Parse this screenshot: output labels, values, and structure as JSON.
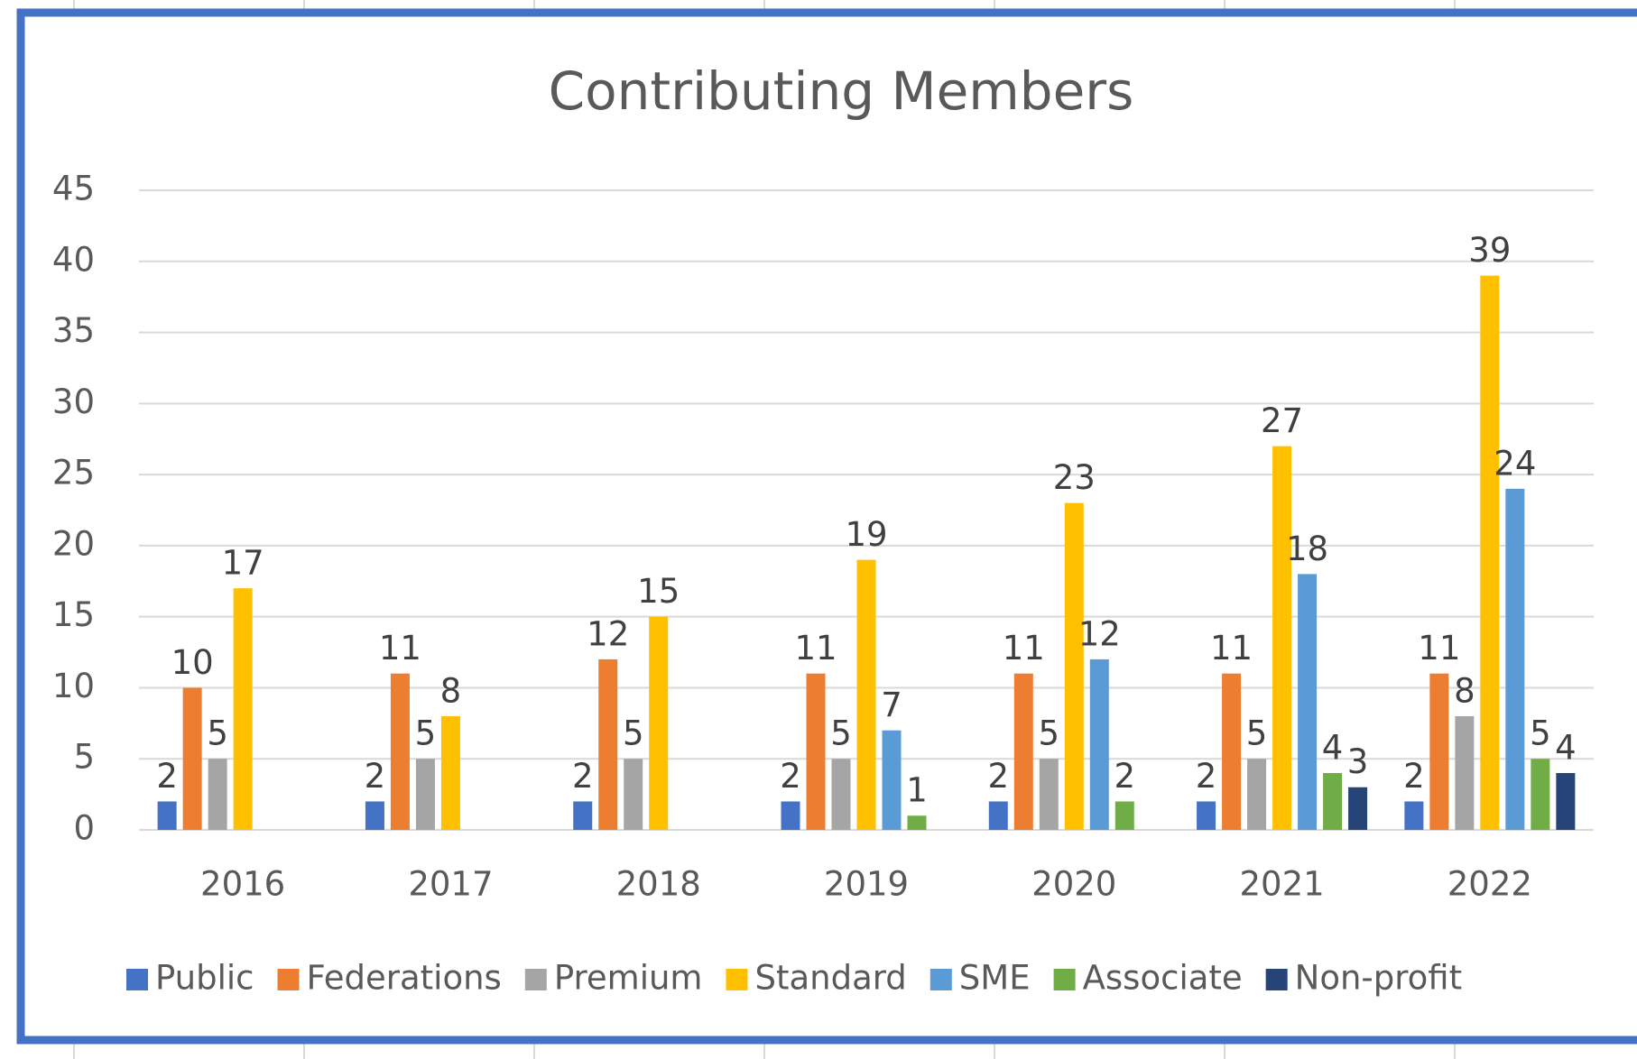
{
  "chart_data": {
    "type": "bar",
    "title": "Contributing Members",
    "categories": [
      "2016",
      "2017",
      "2018",
      "2019",
      "2020",
      "2021",
      "2022"
    ],
    "series": [
      {
        "name": "Public",
        "color": "#4472c4",
        "values": [
          2,
          2,
          2,
          2,
          2,
          2,
          2
        ]
      },
      {
        "name": "Federations",
        "color": "#ed7d31",
        "values": [
          10,
          11,
          12,
          11,
          11,
          11,
          11
        ]
      },
      {
        "name": "Premium",
        "color": "#a5a5a5",
        "values": [
          5,
          5,
          5,
          5,
          5,
          5,
          8
        ]
      },
      {
        "name": "Standard",
        "color": "#ffc000",
        "values": [
          17,
          8,
          15,
          19,
          23,
          27,
          39
        ]
      },
      {
        "name": "SME",
        "color": "#5b9bd5",
        "values": [
          null,
          null,
          null,
          7,
          12,
          18,
          24
        ]
      },
      {
        "name": "Associate",
        "color": "#70ad47",
        "values": [
          null,
          null,
          null,
          1,
          2,
          4,
          5
        ]
      },
      {
        "name": "Non-profit",
        "color": "#264478",
        "values": [
          null,
          null,
          null,
          null,
          null,
          3,
          4
        ]
      }
    ],
    "ylim": [
      0,
      45
    ],
    "yticks": [
      0,
      5,
      10,
      15,
      20,
      25,
      30,
      35,
      40,
      45
    ],
    "grid": true,
    "legend": "bottom"
  }
}
